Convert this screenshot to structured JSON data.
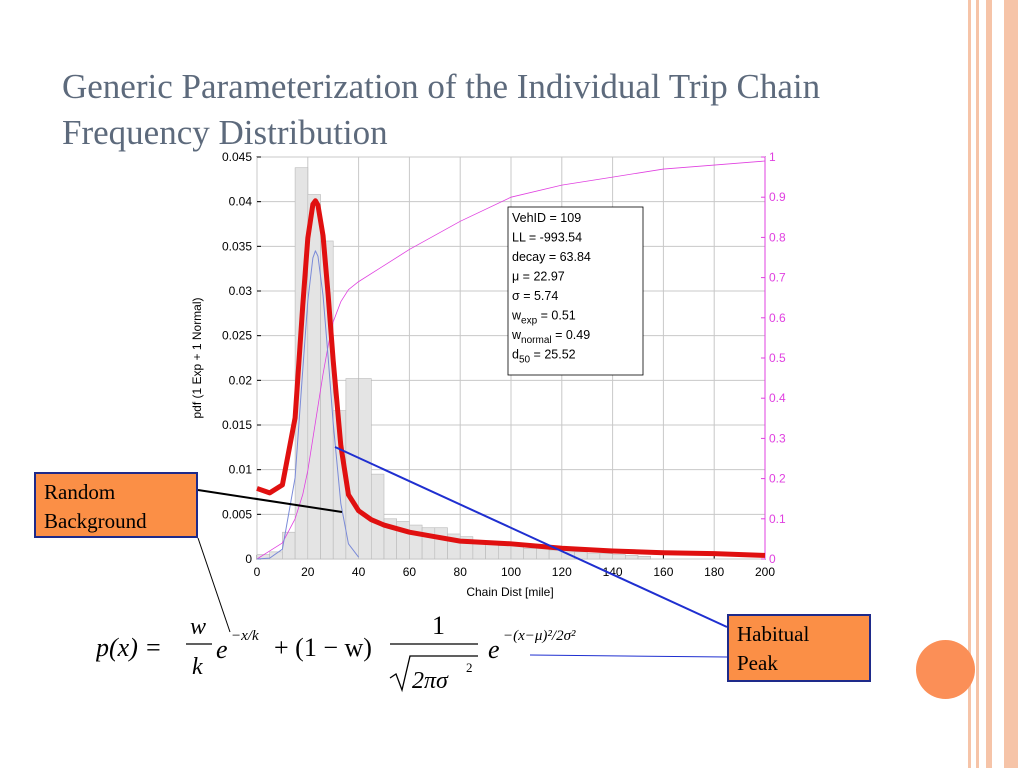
{
  "slide": {
    "title_line1": "Generic Parameterization of the Individual Trip Chain",
    "title_line2": "Frequency Distribution"
  },
  "colors": {
    "title": "#5d6a7c",
    "accent_stripe": "#f6c4a8",
    "accent_circle": "#fb8f57",
    "callout_fill": "#fb8f46",
    "callout_border": "#1e2a8a",
    "fit_curve": "#e01010",
    "cdf_curve": "#e040e0",
    "normal_curve": "#7a8ad8",
    "leader_line": "#1f2fd0"
  },
  "callouts": {
    "random_line1": "Random",
    "random_line2": "Background",
    "habitual_line1": "Habitual",
    "habitual_line2": "Peak"
  },
  "formula": {
    "lhs": "p(x) =",
    "w": "w",
    "k": "k",
    "e": "e",
    "exp1": "−x/k",
    "plus": "+ (1 − w)",
    "one": "1",
    "sqrt_body": "2πσ",
    "sq": "2",
    "exp2": "−(x−μ)²/2σ²"
  },
  "chart_data": {
    "type": "bar",
    "xlabel": "Chain Dist [mile]",
    "ylabel": "pdf (1 Exp + 1 Normal)",
    "xlim": [
      0,
      200
    ],
    "ylim": [
      0,
      0.045
    ],
    "y2lim": [
      0,
      1
    ],
    "grid": true,
    "xticks": [
      "0",
      "20",
      "40",
      "60",
      "80",
      "100",
      "120",
      "140",
      "160",
      "180",
      "200"
    ],
    "yticks": [
      "0",
      "0.005",
      "0.01",
      "0.015",
      "0.02",
      "0.025",
      "0.03",
      "0.035",
      "0.04",
      "0.045"
    ],
    "y2ticks": [
      "0",
      "0.1",
      "0.2",
      "0.3",
      "0.4",
      "0.5",
      "0.6",
      "0.7",
      "0.8",
      "0.9",
      "1"
    ],
    "histogram": {
      "bin_width": 5,
      "bin_starts": [
        0,
        5,
        10,
        15,
        20,
        25,
        30,
        35,
        40,
        45,
        50,
        55,
        60,
        65,
        70,
        75,
        80,
        85,
        90,
        95,
        100,
        105,
        110,
        115,
        120,
        125,
        130,
        135,
        140,
        145,
        150
      ],
      "values": [
        0.0005,
        0.0008,
        0.003,
        0.0438,
        0.0408,
        0.0356,
        0.0166,
        0.0202,
        0.0202,
        0.0095,
        0.0045,
        0.0042,
        0.0038,
        0.0035,
        0.0035,
        0.0028,
        0.0025,
        0.002,
        0.0018,
        0.0015,
        0.0015,
        0.0012,
        0.0012,
        0.001,
        0.0008,
        0.0008,
        0.0006,
        0.0006,
        0.0005,
        0.0004,
        0.0003
      ]
    },
    "series": [
      {
        "type": "line",
        "x": [
          0,
          5,
          10,
          15,
          18,
          20,
          22,
          23,
          24,
          26,
          28,
          30,
          33,
          36,
          40,
          45,
          50,
          60,
          70,
          80,
          100,
          120,
          140,
          160,
          180,
          200
        ],
        "values": [
          0.0079,
          0.0074,
          0.0083,
          0.0158,
          0.0283,
          0.0359,
          0.0397,
          0.0401,
          0.0396,
          0.0362,
          0.0296,
          0.0222,
          0.0127,
          0.0072,
          0.0054,
          0.0044,
          0.0038,
          0.003,
          0.0025,
          0.002,
          0.0017,
          0.0012,
          0.0009,
          0.0007,
          0.0006,
          0.0004
        ]
      },
      {
        "type": "line",
        "x": [
          0,
          5,
          10,
          15,
          18,
          20,
          22,
          23,
          24,
          26,
          28,
          30,
          33,
          36,
          40
        ],
        "values": [
          0.0,
          0.0001,
          0.0011,
          0.0091,
          0.0211,
          0.0289,
          0.0337,
          0.0345,
          0.0339,
          0.0295,
          0.0226,
          0.0152,
          0.0062,
          0.0017,
          0.0002
        ]
      },
      {
        "type": "line",
        "axis": "right",
        "x": [
          0,
          5,
          10,
          15,
          18,
          20,
          22,
          24,
          26,
          28,
          30,
          33,
          36,
          40,
          50,
          60,
          80,
          100,
          120,
          140,
          160,
          180,
          200
        ],
        "values": [
          0.0,
          0.02,
          0.04,
          0.1,
          0.16,
          0.22,
          0.3,
          0.38,
          0.46,
          0.53,
          0.59,
          0.64,
          0.67,
          0.69,
          0.73,
          0.77,
          0.84,
          0.9,
          0.93,
          0.95,
          0.97,
          0.98,
          0.99
        ]
      }
    ],
    "annotation_box": {
      "lines": [
        {
          "main": "VehID = 109",
          "sub": "",
          "rest": ""
        },
        {
          "main": "LL = -993.54",
          "sub": "",
          "rest": ""
        },
        {
          "main": "decay = 63.84",
          "sub": "",
          "rest": ""
        },
        {
          "main": "μ = 22.97",
          "sub": "",
          "rest": ""
        },
        {
          "main": "σ = 5.74",
          "sub": "",
          "rest": ""
        },
        {
          "main": "w",
          "sub": "exp",
          "rest": " = 0.51"
        },
        {
          "main": "w",
          "sub": "normal",
          "rest": " = 0.49"
        },
        {
          "main": "d",
          "sub": "50",
          "rest": " = 25.52"
        }
      ]
    }
  }
}
